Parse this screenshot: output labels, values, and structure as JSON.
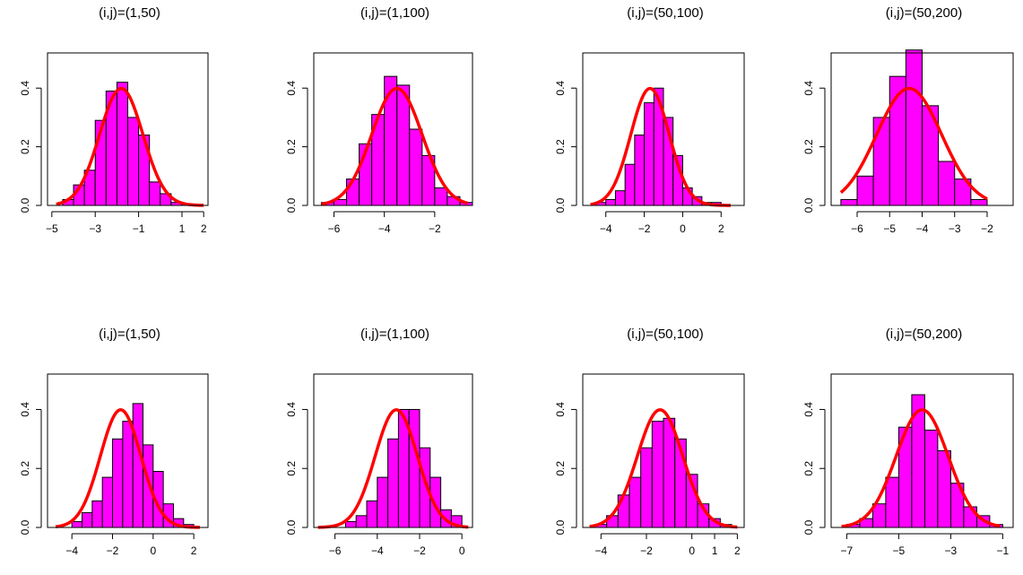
{
  "chart_data": [
    {
      "type": "bar",
      "title": "(i,j)=(1,50)",
      "xlabel": "",
      "ylabel": "",
      "xlim": [
        -5.2,
        2.2
      ],
      "ylim": [
        0,
        0.52
      ],
      "xticks": [
        -5,
        -3,
        -1,
        1,
        2
      ],
      "xtick_labels": [
        "−5",
        "−3",
        "−1",
        "1",
        "2"
      ],
      "yticks": [
        0.0,
        0.2,
        0.4
      ],
      "ytick_labels": [
        "0.0",
        "0.2",
        "0.4"
      ],
      "bins": [
        -4.5,
        -4.0,
        -3.5,
        -3.0,
        -2.5,
        -2.0,
        -1.5,
        -1.0,
        -0.5,
        0.0,
        0.5
      ],
      "values": [
        0.02,
        0.07,
        0.12,
        0.29,
        0.39,
        0.42,
        0.3,
        0.24,
        0.08,
        0.04,
        0.01
      ],
      "density_curve": {
        "mean": -1.8,
        "sd": 1.0,
        "from": -4.8,
        "to": 2.0
      }
    },
    {
      "type": "bar",
      "title": "(i,j)=(1,100)",
      "xlabel": "",
      "ylabel": "",
      "xlim": [
        -6.8,
        -0.5
      ],
      "ylim": [
        0,
        0.52
      ],
      "xticks": [
        -6,
        -4,
        -2
      ],
      "xtick_labels": [
        "−6",
        "−4",
        "−2"
      ],
      "yticks": [
        0.0,
        0.2,
        0.4
      ],
      "ytick_labels": [
        "0.0",
        "0.2",
        "0.4"
      ],
      "bins": [
        -6.5,
        -6.0,
        -5.5,
        -5.0,
        -4.5,
        -4.0,
        -3.5,
        -3.0,
        -2.5,
        -2.0,
        -1.5,
        -1.0
      ],
      "values": [
        0.01,
        0.02,
        0.09,
        0.21,
        0.31,
        0.44,
        0.41,
        0.26,
        0.17,
        0.06,
        0.03,
        0.01
      ],
      "density_curve": {
        "mean": -3.5,
        "sd": 1.0,
        "from": -6.5,
        "to": -0.7
      }
    },
    {
      "type": "bar",
      "title": "(i,j)=(50,100)",
      "xlabel": "",
      "ylabel": "",
      "xlim": [
        -5.2,
        3.2
      ],
      "ylim": [
        0,
        0.52
      ],
      "xticks": [
        -4,
        -2,
        0,
        2
      ],
      "xtick_labels": [
        "−4",
        "−2",
        "0",
        "2"
      ],
      "yticks": [
        0.0,
        0.2,
        0.4
      ],
      "ytick_labels": [
        "0.0",
        "0.2",
        "0.4"
      ],
      "bins": [
        -4.5,
        -4.0,
        -3.5,
        -3.0,
        -2.5,
        -2.0,
        -1.5,
        -1.0,
        -0.5,
        0.0,
        0.5,
        1.0,
        1.5
      ],
      "values": [
        0.01,
        0.02,
        0.05,
        0.14,
        0.24,
        0.35,
        0.4,
        0.3,
        0.17,
        0.06,
        0.03,
        0.01,
        0.01
      ],
      "density_curve": {
        "mean": -1.7,
        "sd": 1.0,
        "from": -4.8,
        "to": 2.5
      }
    },
    {
      "type": "bar",
      "title": "(i,j)=(50,200)",
      "xlabel": "",
      "ylabel": "",
      "xlim": [
        -6.8,
        -1.2
      ],
      "ylim": [
        0,
        0.52
      ],
      "xticks": [
        -6,
        -5,
        -4,
        -3,
        -2
      ],
      "xtick_labels": [
        "−6",
        "−5",
        "−4",
        "−3",
        "−2"
      ],
      "yticks": [
        0.0,
        0.2,
        0.4
      ],
      "ytick_labels": [
        "0.0",
        "0.2",
        "0.4"
      ],
      "bins": [
        -6.5,
        -6.0,
        -5.5,
        -5.0,
        -4.5,
        -4.0,
        -3.5,
        -3.0,
        -2.5,
        -2.0
      ],
      "values": [
        0.02,
        0.1,
        0.3,
        0.44,
        0.53,
        0.34,
        0.15,
        0.09,
        0.02,
        0.0
      ],
      "density_curve": {
        "mean": -4.4,
        "sd": 1.0,
        "from": -6.5,
        "to": -2.0
      }
    },
    {
      "type": "bar",
      "title": "(i,j)=(1,50)",
      "xlabel": "",
      "ylabel": "",
      "xlim": [
        -5.2,
        2.7
      ],
      "ylim": [
        0,
        0.52
      ],
      "xticks": [
        -4,
        -2,
        0,
        2
      ],
      "xtick_labels": [
        "−4",
        "−2",
        "0",
        "2"
      ],
      "yticks": [
        0.0,
        0.2,
        0.4
      ],
      "ytick_labels": [
        "0.0",
        "0.2",
        "0.4"
      ],
      "bins": [
        -4.0,
        -3.5,
        -3.0,
        -2.5,
        -2.0,
        -1.5,
        -1.0,
        -0.5,
        0.0,
        0.5,
        1.0,
        1.5
      ],
      "values": [
        0.02,
        0.05,
        0.09,
        0.17,
        0.3,
        0.36,
        0.42,
        0.28,
        0.19,
        0.08,
        0.03,
        0.01
      ],
      "density_curve": {
        "mean": -1.6,
        "sd": 1.0,
        "from": -4.8,
        "to": 2.3
      }
    },
    {
      "type": "bar",
      "title": "(i,j)=(1,100)",
      "xlabel": "",
      "ylabel": "",
      "xlim": [
        -7.0,
        0.5
      ],
      "ylim": [
        0,
        0.52
      ],
      "xticks": [
        -6,
        -4,
        -2,
        0
      ],
      "xtick_labels": [
        "−6",
        "−4",
        "−2",
        "0"
      ],
      "yticks": [
        0.0,
        0.2,
        0.4
      ],
      "ytick_labels": [
        "0.0",
        "0.2",
        "0.4"
      ],
      "bins": [
        -5.5,
        -5.0,
        -4.5,
        -4.0,
        -3.5,
        -3.0,
        -2.5,
        -2.0,
        -1.5,
        -1.0,
        -0.5
      ],
      "values": [
        0.02,
        0.04,
        0.09,
        0.17,
        0.3,
        0.4,
        0.4,
        0.27,
        0.17,
        0.06,
        0.04
      ],
      "density_curve": {
        "mean": -3.1,
        "sd": 1.0,
        "from": -6.8,
        "to": 0.3
      }
    },
    {
      "type": "bar",
      "title": "(i,j)=(50,100)",
      "xlabel": "",
      "ylabel": "",
      "xlim": [
        -4.8,
        2.3
      ],
      "ylim": [
        0,
        0.52
      ],
      "xticks": [
        -4,
        -2,
        0,
        1,
        2
      ],
      "xtick_labels": [
        "−4",
        "−2",
        "0",
        "1",
        "2"
      ],
      "yticks": [
        0.0,
        0.2,
        0.4
      ],
      "ytick_labels": [
        "0.0",
        "0.2",
        "0.4"
      ],
      "bins": [
        -4.25,
        -3.75,
        -3.25,
        -2.75,
        -2.25,
        -1.75,
        -1.25,
        -0.75,
        -0.25,
        0.25,
        0.75,
        1.25
      ],
      "values": [
        0.01,
        0.04,
        0.11,
        0.17,
        0.27,
        0.36,
        0.37,
        0.3,
        0.18,
        0.08,
        0.03,
        0.01
      ],
      "density_curve": {
        "mean": -1.4,
        "sd": 1.0,
        "from": -4.5,
        "to": 2.0
      }
    },
    {
      "type": "bar",
      "title": "(i,j)=(50,200)",
      "xlabel": "",
      "ylabel": "",
      "xlim": [
        -7.6,
        -0.6
      ],
      "ylim": [
        0,
        0.52
      ],
      "xticks": [
        -7,
        -5,
        -3,
        -1
      ],
      "xtick_labels": [
        "−7",
        "−5",
        "−3",
        "−1"
      ],
      "yticks": [
        0.0,
        0.2,
        0.4
      ],
      "ytick_labels": [
        "0.0",
        "0.2",
        "0.4"
      ],
      "bins": [
        -7.0,
        -6.5,
        -6.0,
        -5.5,
        -5.0,
        -4.5,
        -4.0,
        -3.5,
        -3.0,
        -2.5,
        -2.0,
        -1.5
      ],
      "values": [
        0.01,
        0.03,
        0.08,
        0.17,
        0.34,
        0.45,
        0.33,
        0.26,
        0.15,
        0.07,
        0.04,
        0.01
      ],
      "density_curve": {
        "mean": -4.1,
        "sd": 1.0,
        "from": -7.2,
        "to": -1.1
      }
    }
  ],
  "colors": {
    "bar_fill": "#ff00ff",
    "bar_stroke": "#000000",
    "curve": "#ff0000",
    "axis": "#000000"
  }
}
